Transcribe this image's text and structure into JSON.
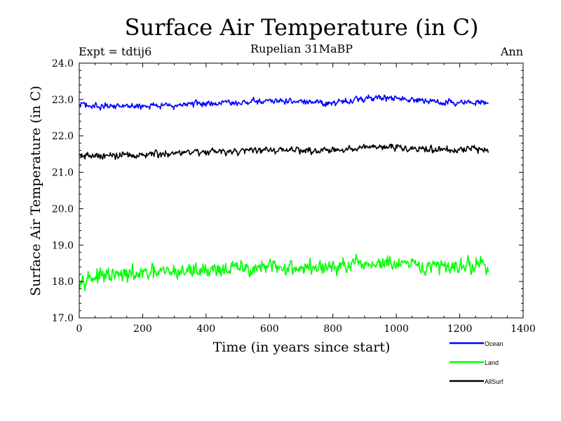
{
  "chart_data": {
    "type": "line",
    "title": "Surface Air Temperature (in C)",
    "subtitle": "Rupelian  31MaBP",
    "expt_label": "Expt = tdtij6",
    "season_label": "Ann",
    "xlabel": "Time (in years since start)",
    "ylabel": "Surface Air Temperature (in C)",
    "xlim": [
      0,
      1400
    ],
    "ylim": [
      17.0,
      24.0
    ],
    "x_ticks": [
      0,
      200,
      400,
      600,
      800,
      1000,
      1200,
      1400
    ],
    "x_tick_labels": [
      "0",
      "200",
      "400",
      "600",
      "800",
      "1000",
      "1200",
      "1400"
    ],
    "y_ticks": [
      17.0,
      18.0,
      19.0,
      20.0,
      21.0,
      22.0,
      23.0,
      24.0
    ],
    "y_tick_labels": [
      "17.0",
      "18.0",
      "19.0",
      "20.0",
      "21.0",
      "22.0",
      "23.0",
      "24.0"
    ],
    "x_range": [
      0,
      1290
    ],
    "series": [
      {
        "name": "Ocean",
        "color": "#0000ff",
        "trend": [
          [
            0,
            22.84
          ],
          [
            200,
            22.82
          ],
          [
            400,
            22.88
          ],
          [
            600,
            22.95
          ],
          [
            800,
            22.92
          ],
          [
            950,
            23.05
          ],
          [
            1100,
            22.95
          ],
          [
            1200,
            22.9
          ],
          [
            1290,
            22.92
          ]
        ],
        "noise": 0.09
      },
      {
        "name": "Land",
        "color": "#00ff00",
        "trend": [
          [
            0,
            18.1
          ],
          [
            200,
            18.2
          ],
          [
            400,
            18.33
          ],
          [
            600,
            18.38
          ],
          [
            800,
            18.38
          ],
          [
            950,
            18.5
          ],
          [
            1100,
            18.38
          ],
          [
            1200,
            18.45
          ],
          [
            1290,
            18.45
          ]
        ],
        "noise": 0.22
      },
      {
        "name": "AllSurf",
        "color": "#000000",
        "trend": [
          [
            0,
            21.45
          ],
          [
            200,
            21.48
          ],
          [
            400,
            21.57
          ],
          [
            600,
            21.62
          ],
          [
            800,
            21.6
          ],
          [
            950,
            21.72
          ],
          [
            1100,
            21.62
          ],
          [
            1200,
            21.62
          ],
          [
            1290,
            21.62
          ]
        ],
        "noise": 0.1
      }
    ],
    "legend": [
      "Ocean",
      "Land",
      "AllSurf"
    ]
  }
}
